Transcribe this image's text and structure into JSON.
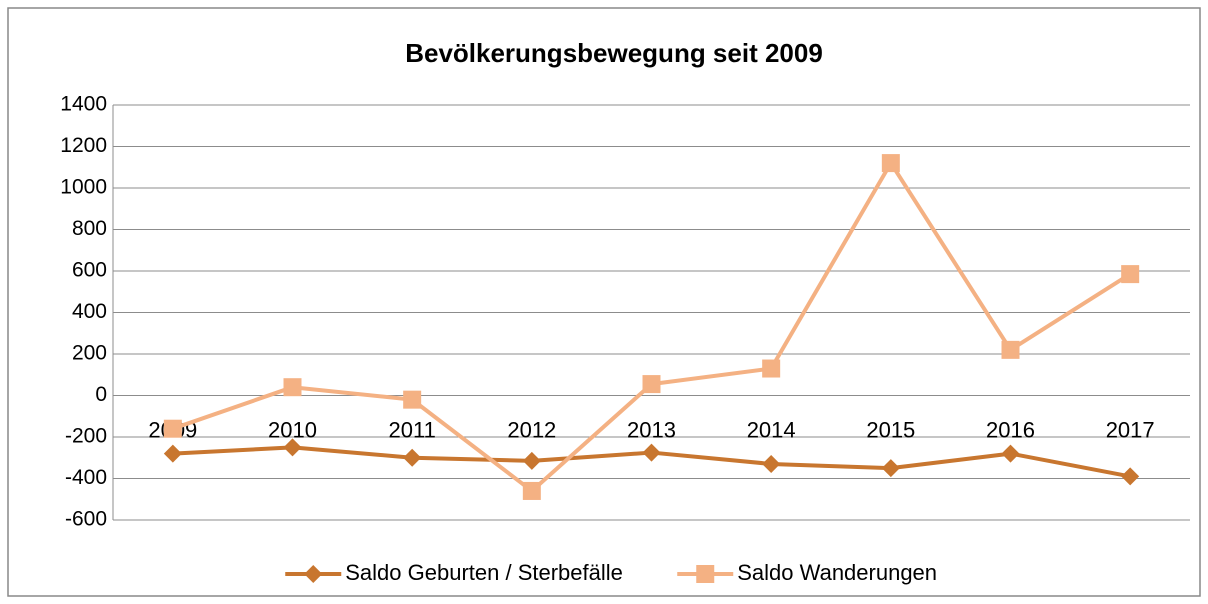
{
  "chart_data": {
    "type": "line",
    "title": "Bevölkerungsbewegung seit 2009",
    "categories": [
      "2009",
      "2010",
      "2011",
      "2012",
      "2013",
      "2014",
      "2015",
      "2016",
      "2017"
    ],
    "series": [
      {
        "name": "Saldo Geburten / Sterbefälle",
        "color": "#c8762f",
        "marker": "diamond",
        "values": [
          -280,
          -250,
          -300,
          -315,
          -275,
          -330,
          -350,
          -280,
          -390
        ]
      },
      {
        "name": "Saldo Wanderungen",
        "color": "#f4b183",
        "marker": "square",
        "values": [
          -160,
          40,
          -20,
          -460,
          55,
          130,
          1120,
          220,
          585
        ]
      }
    ],
    "ylim": [
      -600,
      1400
    ],
    "yticks": [
      -600,
      -400,
      -200,
      0,
      200,
      400,
      600,
      800,
      1000,
      1200,
      1400
    ],
    "grid": true,
    "legend": "bottom"
  }
}
